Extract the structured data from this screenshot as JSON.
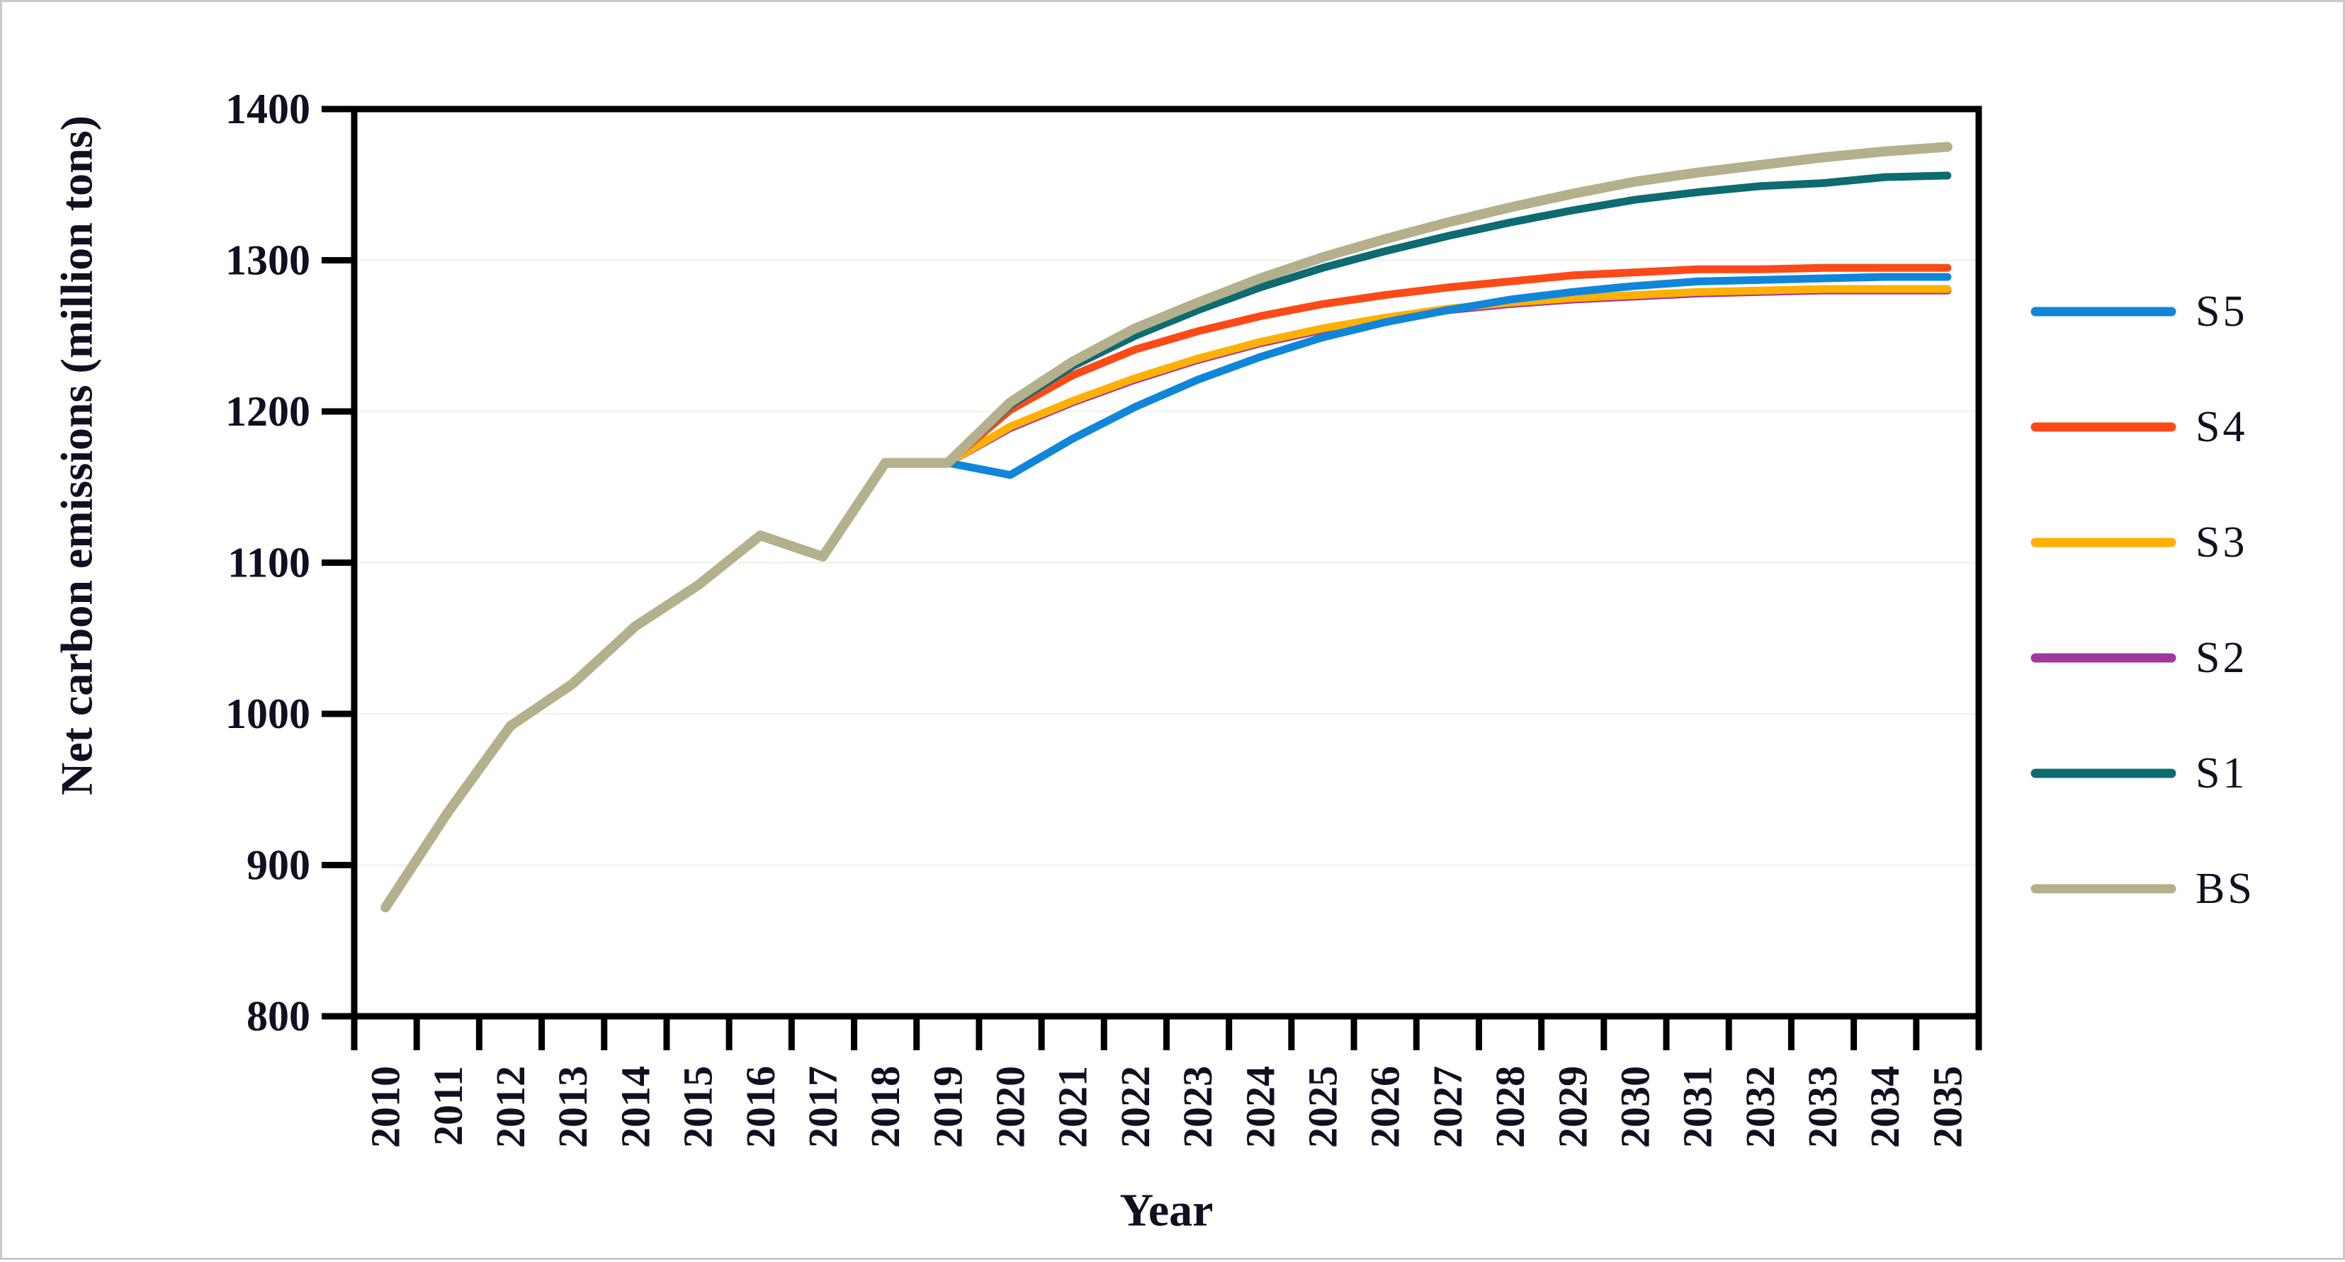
{
  "figure": {
    "background": "#ffffff",
    "frame_color": "#c9c9c9",
    "axis_color": "#000000",
    "text_color": "#101022",
    "gridline_color": "#f4f4ef"
  },
  "chart_data": {
    "type": "line",
    "title": "",
    "xlabel": "Year",
    "ylabel": "Net carbon emissions (million tons)",
    "x": [
      2010,
      2011,
      2012,
      2013,
      2014,
      2015,
      2016,
      2017,
      2018,
      2019,
      2020,
      2021,
      2022,
      2023,
      2024,
      2025,
      2026,
      2027,
      2028,
      2029,
      2030,
      2031,
      2032,
      2033,
      2034,
      2035
    ],
    "xtick_labels": [
      "2010",
      "2011",
      "2012",
      "2013",
      "2014",
      "2015",
      "2016",
      "2017",
      "2018",
      "2019",
      "2020",
      "2021",
      "2022",
      "2023",
      "2024",
      "2025",
      "2026",
      "2027",
      "2028",
      "2029",
      "2030",
      "2031",
      "2032",
      "2033",
      "2034",
      "2035"
    ],
    "ylim": [
      800,
      1400
    ],
    "yticks": [
      800,
      900,
      1000,
      1100,
      1200,
      1300,
      1400
    ],
    "grid": "off",
    "legend_position": "right-outside",
    "legend_order": [
      "S5",
      "S4",
      "S3",
      "S2",
      "S1",
      "BS"
    ],
    "draw_order": [
      "S2",
      "S3",
      "S5",
      "S4",
      "S1",
      "BS"
    ],
    "series": [
      {
        "name": "S5",
        "color": "#0f86d9",
        "values": [
          872,
          935,
          992,
          1020,
          1058,
          1085,
          1118,
          1104,
          1166,
          1166,
          1158,
          1182,
          1203,
          1221,
          1236,
          1249,
          1259,
          1267,
          1274,
          1279,
          1283,
          1286,
          1287,
          1288,
          1289,
          1289
        ]
      },
      {
        "name": "S4",
        "color": "#fb4a18",
        "values": [
          872,
          935,
          992,
          1020,
          1058,
          1085,
          1118,
          1104,
          1166,
          1166,
          1201,
          1224,
          1241,
          1253,
          1263,
          1271,
          1277,
          1282,
          1286,
          1290,
          1292,
          1294,
          1294,
          1295,
          1295,
          1295
        ]
      },
      {
        "name": "S3",
        "color": "#ffb005",
        "values": [
          872,
          935,
          992,
          1020,
          1058,
          1085,
          1118,
          1104,
          1166,
          1166,
          1190,
          1207,
          1222,
          1235,
          1246,
          1255,
          1262,
          1268,
          1272,
          1275,
          1277,
          1279,
          1280,
          1281,
          1281,
          1281
        ]
      },
      {
        "name": "S2",
        "color": "#a2379e",
        "values": [
          872,
          935,
          992,
          1020,
          1058,
          1085,
          1118,
          1104,
          1166,
          1166,
          1189,
          1206,
          1221,
          1234,
          1245,
          1254,
          1261,
          1267,
          1271,
          1274,
          1276,
          1278,
          1279,
          1280,
          1280,
          1280
        ]
      },
      {
        "name": "S1",
        "color": "#0d6b72",
        "values": [
          872,
          935,
          992,
          1020,
          1058,
          1085,
          1118,
          1104,
          1166,
          1166,
          1204,
          1230,
          1250,
          1267,
          1282,
          1295,
          1306,
          1316,
          1325,
          1333,
          1340,
          1345,
          1349,
          1351,
          1355,
          1356
        ]
      },
      {
        "name": "BS",
        "color": "#b4b08c",
        "values": [
          872,
          935,
          992,
          1020,
          1058,
          1085,
          1118,
          1104,
          1166,
          1166,
          1206,
          1233,
          1255,
          1272,
          1288,
          1302,
          1314,
          1325,
          1335,
          1344,
          1352,
          1358,
          1363,
          1368,
          1372,
          1375
        ]
      }
    ]
  }
}
